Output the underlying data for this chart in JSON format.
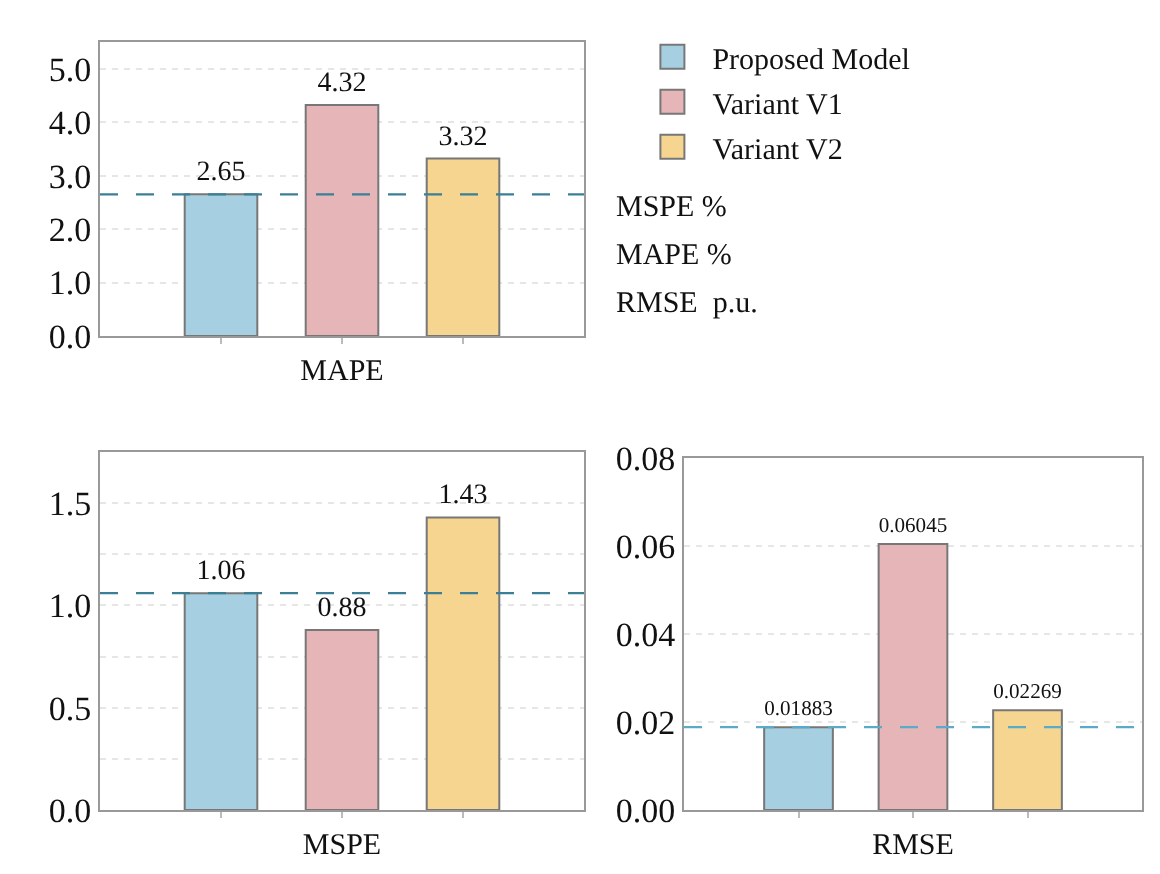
{
  "chart_data": [
    {
      "type": "bar",
      "categories": [
        null,
        "MAPE",
        null
      ],
      "series": [
        {
          "name": "Proposed Model",
          "color": "#a6cfe2",
          "values": [
            2.65,
            null,
            null
          ]
        },
        {
          "name": "Variant V1",
          "color": "#e6b5b8",
          "values": [
            null,
            4.32,
            null
          ]
        },
        {
          "name": "Variant V2",
          "color": "#f5d590",
          "values": [
            null,
            null,
            3.32
          ]
        }
      ],
      "ylim": [
        0,
        5.5
      ],
      "yticks": [
        {
          "value": 0,
          "label": "0.0"
        },
        {
          "value": 1,
          "label": "1.0"
        },
        {
          "value": 2,
          "label": "2.0"
        },
        {
          "value": 3,
          "label": "3.0"
        },
        {
          "value": 4,
          "label": "4.0"
        },
        {
          "value": 5,
          "label": "5.0"
        }
      ],
      "ref_lines": [
        {
          "axis": "y",
          "value": 2.65,
          "color": "#3a7f96",
          "line_style": "dashed"
        }
      ],
      "data_labels": true,
      "grid": "y",
      "legend": "right"
    },
    {
      "type": "other",
      "annotations": [
        "MSPE %",
        "MAPE %",
        "RMSE  p.u."
      ]
    },
    {
      "type": "bar",
      "categories": [
        null,
        "MSPE",
        null
      ],
      "series": [
        {
          "color": "#a6cfe2",
          "values": [
            1.06,
            null,
            null
          ]
        },
        {
          "color": "#e6b5b8",
          "values": [
            null,
            0.88,
            null
          ]
        },
        {
          "color": "#f5d590",
          "values": [
            null,
            null,
            1.43
          ]
        }
      ],
      "ylim": [
        0,
        1.75
      ],
      "yticks": [
        {
          "value": 0,
          "label": "0.0"
        },
        {
          "value": 0.25,
          "label": null
        },
        {
          "value": 0.5,
          "label": "0.5"
        },
        {
          "value": 0.75,
          "label": null
        },
        {
          "value": 1,
          "label": "1.0"
        },
        {
          "value": 1.25,
          "label": null
        },
        {
          "value": 1.5,
          "label": "1.5"
        }
      ],
      "ref_lines": [
        {
          "axis": "y",
          "value": 1.06,
          "color": "#3a7f96",
          "line_style": "dashed"
        }
      ],
      "data_labels": true,
      "grid": "y"
    },
    {
      "type": "bar",
      "categories": [
        null,
        "RMSE",
        null
      ],
      "series": [
        {
          "color": "#a6cfe2",
          "values": [
            0.01883,
            null,
            null
          ]
        },
        {
          "color": "#e6b5b8",
          "values": [
            null,
            0.06045,
            null
          ]
        },
        {
          "color": "#f5d590",
          "values": [
            null,
            null,
            0.02269
          ]
        }
      ],
      "ylim": [
        0,
        0.08
      ],
      "yticks": [
        {
          "value": 0,
          "label": "0.00"
        },
        {
          "value": 0.02,
          "label": "0.02"
        },
        {
          "value": 0.04,
          "label": "0.04"
        },
        {
          "value": 0.06,
          "label": "0.06"
        },
        {
          "value": 0.08,
          "label": "0.08"
        }
      ],
      "ref_lines": [
        {
          "axis": "y",
          "value": 0.01883,
          "color": "#5aaac8",
          "line_style": "dashed"
        }
      ],
      "data_labels": true,
      "grid": "y"
    }
  ]
}
